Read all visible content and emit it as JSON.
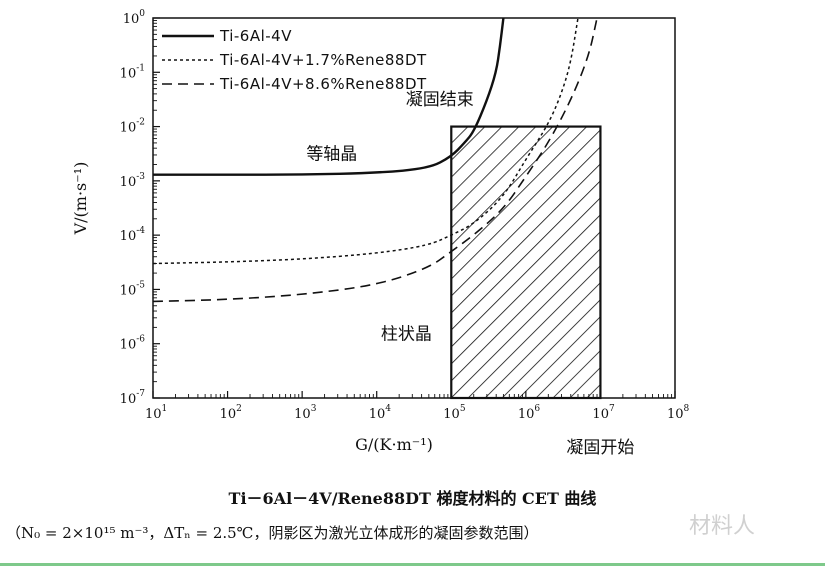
{
  "chart_data": {
    "type": "line",
    "xlabel": "G/(K·m⁻¹)",
    "ylabel": "V/(m·s⁻¹)",
    "xscale": "log",
    "yscale": "log",
    "xlim": [
      10,
      100000000
    ],
    "ylim": [
      1e-07,
      1
    ],
    "x_ticks": [
      {
        "base": "10",
        "exp": "1"
      },
      {
        "base": "10",
        "exp": "2"
      },
      {
        "base": "10",
        "exp": "3"
      },
      {
        "base": "10",
        "exp": "4"
      },
      {
        "base": "10",
        "exp": "5"
      },
      {
        "base": "10",
        "exp": "6"
      },
      {
        "base": "10",
        "exp": "7"
      },
      {
        "base": "10",
        "exp": "8"
      }
    ],
    "y_ticks": [
      {
        "base": "10",
        "exp": "0"
      },
      {
        "base": "10",
        "exp": "-1"
      },
      {
        "base": "10",
        "exp": "-2"
      },
      {
        "base": "10",
        "exp": "-3"
      },
      {
        "base": "10",
        "exp": "-4"
      },
      {
        "base": "10",
        "exp": "-5"
      },
      {
        "base": "10",
        "exp": "-6"
      },
      {
        "base": "10",
        "exp": "-7"
      }
    ],
    "grid": false,
    "legend_position": "top-left",
    "series": [
      {
        "name": "Ti-6Al-4V",
        "style": "solid",
        "x": [
          10,
          100,
          1000,
          10000,
          50000,
          100000,
          150000,
          200000,
          300000,
          400000,
          450000,
          500000
        ],
        "y": [
          0.0013,
          0.0013,
          0.0013,
          0.0014,
          0.0017,
          0.0028,
          0.005,
          0.008,
          0.03,
          0.1,
          0.3,
          1
        ]
      },
      {
        "name": "Ti-6Al-4V+1.7%Rene88DT",
        "style": "dotted",
        "x": [
          10,
          100,
          1000,
          10000,
          50000,
          100000,
          200000,
          500000,
          1000000,
          2000000,
          3000000,
          4000000,
          5000000
        ],
        "y": [
          3e-05,
          3.2e-05,
          3.6e-05,
          4.6e-05,
          6.5e-05,
          0.0001,
          0.00016,
          0.0005,
          0.0025,
          0.011,
          0.04,
          0.15,
          1
        ]
      },
      {
        "name": "Ti-6Al-4V+8.6%Rene88DT",
        "style": "dashed",
        "x": [
          10,
          100,
          1000,
          10000,
          50000,
          100000,
          200000,
          500000,
          1000000,
          2000000,
          4000000,
          7000000,
          9000000
        ],
        "y": [
          6e-06,
          6.5e-06,
          8e-06,
          1.2e-05,
          2.5e-05,
          5e-05,
          0.0001,
          0.0003,
          0.0012,
          0.005,
          0.03,
          0.2,
          1
        ]
      }
    ],
    "shaded_region": {
      "x": [
        100000,
        10000000
      ],
      "y": [
        1e-07,
        0.01
      ],
      "pattern": "hatch"
    },
    "annotations": [
      {
        "text": "等轴晶",
        "x": 2500,
        "y": 0.0025
      },
      {
        "text": "柱状晶",
        "x": 25000,
        "y": 1.2e-06
      },
      {
        "text": "凝固结束",
        "x": 70000,
        "y": 0.025
      }
    ],
    "extra_labels": {
      "solidification_start": "凝固开始"
    }
  },
  "caption": "Ti－6Al－4V/Rene88DT 梯度材料的 CET 曲线",
  "note": "（N₀ = 2×10¹⁵ m⁻³，ΔTₙ = 2.5℃，阴影区为激光立体成形的凝固参数范围）",
  "watermark": "材料人"
}
